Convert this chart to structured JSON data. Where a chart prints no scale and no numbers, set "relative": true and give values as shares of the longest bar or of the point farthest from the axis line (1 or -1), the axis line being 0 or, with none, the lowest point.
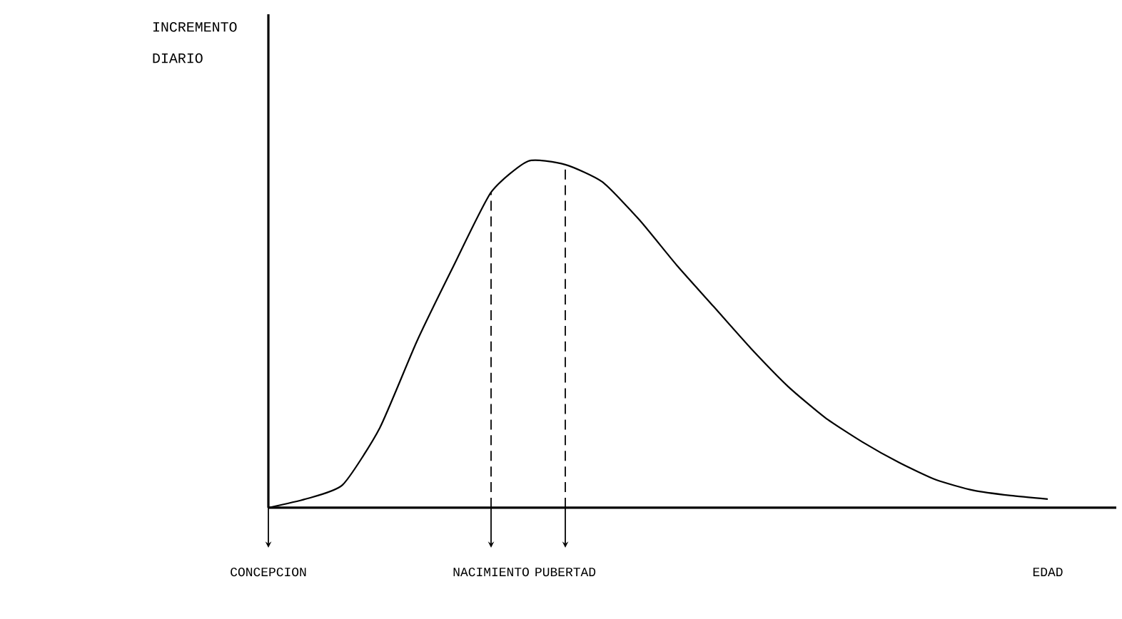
{
  "chart_data": {
    "type": "line",
    "relative": true,
    "ylabel": "INCREMENTO DIARIO",
    "categories": [
      "CONCEPCION",
      null,
      null,
      null,
      null,
      null,
      "NACIMIENTO",
      null,
      "PUBERTAD",
      null,
      null,
      null,
      null,
      null,
      null,
      null,
      null,
      null,
      null,
      null,
      null,
      "EDAD"
    ],
    "values": [
      0,
      0.025,
      0.066,
      0.23,
      0.48,
      0.7,
      0.91,
      1.0,
      0.99,
      0.94,
      0.83,
      0.7,
      0.58,
      0.46,
      0.35,
      0.26,
      0.19,
      0.13,
      0.08,
      0.05,
      0.035,
      0.025
    ],
    "color": "#000000",
    "ref_lines": [
      {
        "axis": "x",
        "value": "NACIMIENTO",
        "line_style": "dashed"
      },
      {
        "axis": "x",
        "value": "PUBERTAD",
        "line_style": "dashed"
      }
    ]
  }
}
